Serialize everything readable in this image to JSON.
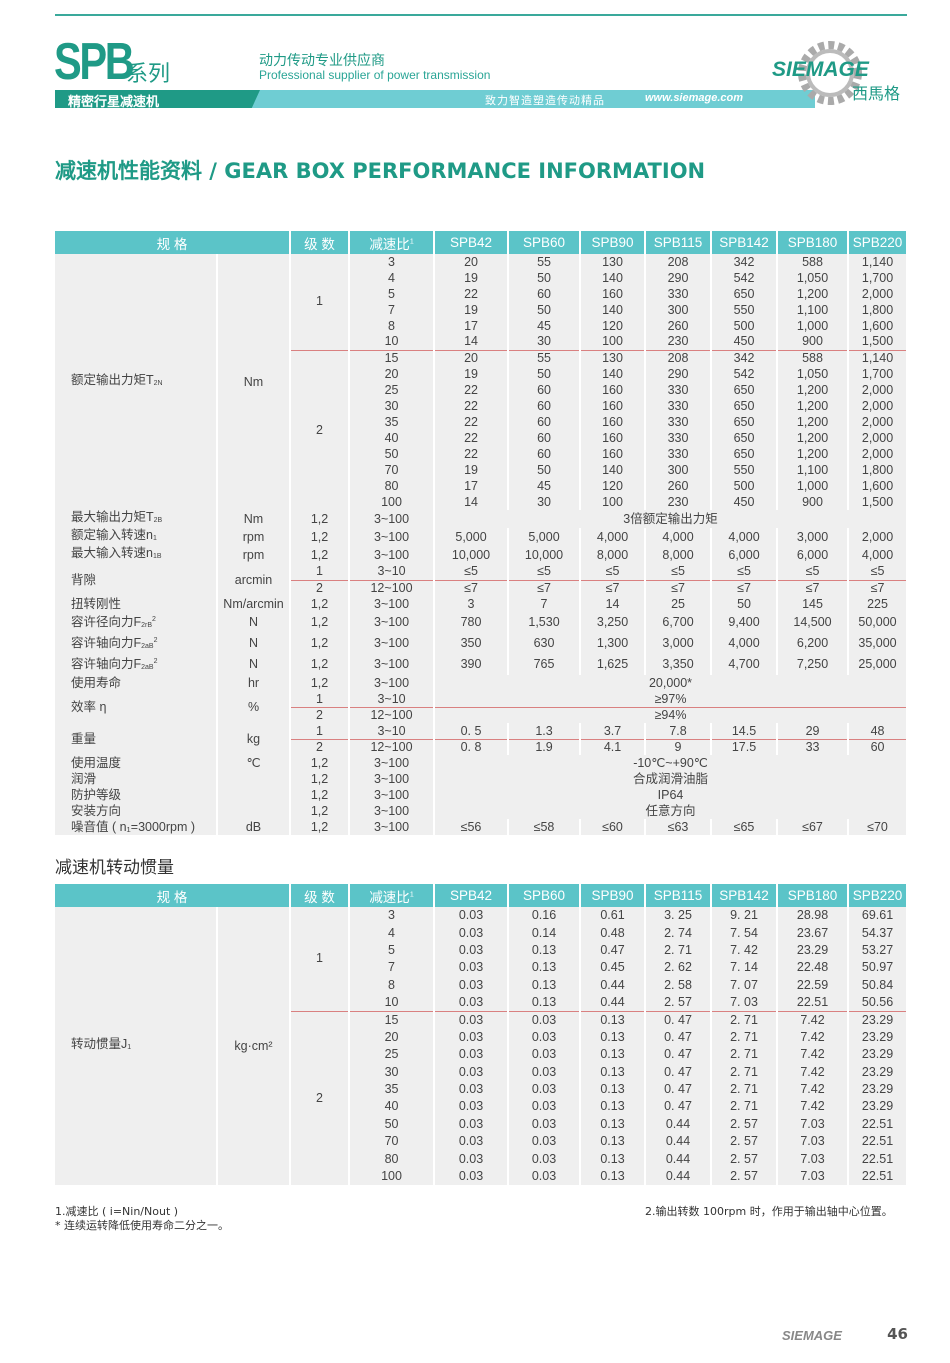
{
  "header": {
    "brand": "SPB",
    "series": "系列",
    "tagline_cn": "动力传动专业供应商",
    "tagline_en": "Professional supplier of power transmission",
    "product": "精密行星减速机",
    "slogan": "致力智造塑造传动精品",
    "url": "www.siemage.com",
    "logo_text": "SIEMAGE",
    "logo_cn": "西馬格",
    "accent": "#1f9a86",
    "band_color": "#6fcdd3"
  },
  "title": "减速机性能资料 / GEAR BOX PERFORMANCE INFORMATION",
  "columns": {
    "spec": "规 格",
    "stage": "级 数",
    "ratio": "减速比",
    "ratio_sup": "1",
    "models": [
      "SPB42",
      "SPB60",
      "SPB90",
      "SPB115",
      "SPB142",
      "SPB180",
      "SPB220"
    ]
  },
  "performance": [
    {
      "label": "额定输出力矩T",
      "sub": "2N",
      "unit": "Nm",
      "stages": [
        {
          "stage": "1",
          "rows": [
            {
              "ratio": "3",
              "values": [
                "20",
                "55",
                "130",
                "208",
                "342",
                "588",
                "1,140"
              ]
            },
            {
              "ratio": "4",
              "values": [
                "19",
                "50",
                "140",
                "290",
                "542",
                "1,050",
                "1,700"
              ]
            },
            {
              "ratio": "5",
              "values": [
                "22",
                "60",
                "160",
                "330",
                "650",
                "1,200",
                "2,000"
              ]
            },
            {
              "ratio": "7",
              "values": [
                "19",
                "50",
                "140",
                "300",
                "550",
                "1,100",
                "1,800"
              ]
            },
            {
              "ratio": "8",
              "values": [
                "17",
                "45",
                "120",
                "260",
                "500",
                "1,000",
                "1,600"
              ]
            },
            {
              "ratio": "10",
              "values": [
                "14",
                "30",
                "100",
                "230",
                "450",
                "900",
                "1,500"
              ]
            }
          ]
        },
        {
          "stage": "2",
          "rows": [
            {
              "ratio": "15",
              "values": [
                "20",
                "55",
                "130",
                "208",
                "342",
                "588",
                "1,140"
              ]
            },
            {
              "ratio": "20",
              "values": [
                "19",
                "50",
                "140",
                "290",
                "542",
                "1,050",
                "1,700"
              ]
            },
            {
              "ratio": "25",
              "values": [
                "22",
                "60",
                "160",
                "330",
                "650",
                "1,200",
                "2,000"
              ]
            },
            {
              "ratio": "30",
              "values": [
                "22",
                "60",
                "160",
                "330",
                "650",
                "1,200",
                "2,000"
              ]
            },
            {
              "ratio": "35",
              "values": [
                "22",
                "60",
                "160",
                "330",
                "650",
                "1,200",
                "2,000"
              ]
            },
            {
              "ratio": "40",
              "values": [
                "22",
                "60",
                "160",
                "330",
                "650",
                "1,200",
                "2,000"
              ]
            },
            {
              "ratio": "50",
              "values": [
                "22",
                "60",
                "160",
                "330",
                "650",
                "1,200",
                "2,000"
              ]
            },
            {
              "ratio": "70",
              "values": [
                "19",
                "50",
                "140",
                "300",
                "550",
                "1,100",
                "1,800"
              ]
            },
            {
              "ratio": "80",
              "values": [
                "17",
                "45",
                "120",
                "260",
                "500",
                "1,000",
                "1,600"
              ]
            },
            {
              "ratio": "100",
              "values": [
                "14",
                "30",
                "100",
                "230",
                "450",
                "900",
                "1,500"
              ]
            }
          ]
        }
      ]
    },
    {
      "label": "最大输出力矩T",
      "sub": "2B",
      "unit": "Nm",
      "stages": [
        {
          "stage": "1,2",
          "rows": [
            {
              "ratio": "3~100",
              "values": "3倍额定输出力矩"
            }
          ]
        }
      ]
    },
    {
      "label": "额定输入转速n",
      "sub": "1",
      "unit": "rpm",
      "stages": [
        {
          "stage": "1,2",
          "rows": [
            {
              "ratio": "3~100",
              "values": [
                "5,000",
                "5,000",
                "4,000",
                "4,000",
                "4,000",
                "3,000",
                "2,000"
              ]
            }
          ]
        }
      ]
    },
    {
      "label": "最大输入转速n",
      "sub": "1B",
      "unit": "rpm",
      "stages": [
        {
          "stage": "1,2",
          "rows": [
            {
              "ratio": "3~100",
              "values": [
                "10,000",
                "10,000",
                "8,000",
                "8,000",
                "6,000",
                "6,000",
                "4,000"
              ]
            }
          ]
        }
      ]
    },
    {
      "label": "背隙",
      "sub": "",
      "unit": "arcmin",
      "stages": [
        {
          "stage": "1",
          "rows": [
            {
              "ratio": "3~10",
              "values": [
                "≤5",
                "≤5",
                "≤5",
                "≤5",
                "≤5",
                "≤5",
                "≤5"
              ]
            }
          ]
        },
        {
          "stage": "2",
          "rows": [
            {
              "ratio": "12~100",
              "values": [
                "≤7",
                "≤7",
                "≤7",
                "≤7",
                "≤7",
                "≤7",
                "≤7"
              ]
            }
          ]
        }
      ]
    },
    {
      "label": "扭转刚性",
      "sub": "",
      "unit": "Nm/arcmin",
      "stages": [
        {
          "stage": "1,2",
          "rows": [
            {
              "ratio": "3~100",
              "values": [
                "3",
                "7",
                "14",
                "25",
                "50",
                "145",
                "225"
              ]
            }
          ]
        }
      ]
    },
    {
      "label": "容许径向力F",
      "sub": "2rB",
      "sup": "2",
      "unit": "N",
      "stages": [
        {
          "stage": "1,2",
          "rows": [
            {
              "ratio": "3~100",
              "values": [
                "780",
                "1,530",
                "3,250",
                "6,700",
                "9,400",
                "14,500",
                "50,000"
              ]
            }
          ]
        }
      ]
    },
    {
      "label": "容许轴向力F",
      "sub": "2aB",
      "sup": "2",
      "unit": "N",
      "stages": [
        {
          "stage": "1,2",
          "rows": [
            {
              "ratio": "3~100",
              "values": [
                "350",
                "630",
                "1,300",
                "3,000",
                "4,000",
                "6,200",
                "35,000"
              ]
            }
          ]
        }
      ]
    },
    {
      "label": "容许轴向力F",
      "sub": "2aB",
      "sup": "2",
      "unit": "N",
      "stages": [
        {
          "stage": "1,2",
          "rows": [
            {
              "ratio": "3~100",
              "values": [
                "390",
                "765",
                "1,625",
                "3,350",
                "4,700",
                "7,250",
                "25,000"
              ]
            }
          ]
        }
      ]
    },
    {
      "label": "使用寿命",
      "sub": "",
      "unit": "hr",
      "stages": [
        {
          "stage": "1,2",
          "rows": [
            {
              "ratio": "3~100",
              "values": "20,000*"
            }
          ]
        }
      ]
    },
    {
      "label": "效率 η",
      "sub": "",
      "unit": "%",
      "stages": [
        {
          "stage": "1",
          "rows": [
            {
              "ratio": "3~10",
              "values": "≥97%"
            }
          ]
        },
        {
          "stage": "2",
          "rows": [
            {
              "ratio": "12~100",
              "values": "≥94%"
            }
          ]
        }
      ]
    },
    {
      "label": "重量",
      "sub": "",
      "unit": "kg",
      "stages": [
        {
          "stage": "1",
          "rows": [
            {
              "ratio": "3~10",
              "values": [
                "0. 5",
                "1.3",
                "3.7",
                "7.8",
                "14.5",
                "29",
                "48"
              ]
            }
          ]
        },
        {
          "stage": "2",
          "rows": [
            {
              "ratio": "12~100",
              "values": [
                "0. 8",
                "1.9",
                "4.1",
                "9",
                "17.5",
                "33",
                "60"
              ]
            }
          ]
        }
      ]
    },
    {
      "label": "使用温度",
      "sub": "",
      "unit": "℃",
      "stages": [
        {
          "stage": "1,2",
          "rows": [
            {
              "ratio": "3~100",
              "values": "-10℃~+90℃"
            }
          ]
        }
      ]
    },
    {
      "label": "润滑",
      "sub": "",
      "unit": "",
      "stages": [
        {
          "stage": "1,2",
          "rows": [
            {
              "ratio": "3~100",
              "values": "合成润滑油脂"
            }
          ]
        }
      ]
    },
    {
      "label": "防护等级",
      "sub": "",
      "unit": "",
      "stages": [
        {
          "stage": "1,2",
          "rows": [
            {
              "ratio": "3~100",
              "values": "IP64"
            }
          ]
        }
      ]
    },
    {
      "label": "安装方向",
      "sub": "",
      "unit": "",
      "stages": [
        {
          "stage": "1,2",
          "rows": [
            {
              "ratio": "3~100",
              "values": "任意方向"
            }
          ]
        }
      ]
    },
    {
      "label": "噪音值 ( n₁=3000rpm )",
      "sub": "",
      "unit": "dB",
      "stages": [
        {
          "stage": "1,2",
          "rows": [
            {
              "ratio": "3~100",
              "values": [
                "≤56",
                "≤58",
                "≤60",
                "≤63",
                "≤65",
                "≤67",
                "≤70"
              ]
            }
          ]
        }
      ]
    }
  ],
  "inertia_title": "减速机转动惯量",
  "inertia": [
    {
      "label": "转动惯量J",
      "sub": "1",
      "unit": "kg·cm²",
      "stages": [
        {
          "stage": "1",
          "rows": [
            {
              "ratio": "3",
              "values": [
                "0.03",
                "0.16",
                "0.61",
                "3. 25",
                "9. 21",
                "28.98",
                "69.61"
              ]
            },
            {
              "ratio": "4",
              "values": [
                "0.03",
                "0.14",
                "0.48",
                "2. 74",
                "7. 54",
                "23.67",
                "54.37"
              ]
            },
            {
              "ratio": "5",
              "values": [
                "0.03",
                "0.13",
                "0.47",
                "2. 71",
                "7. 42",
                "23.29",
                "53.27"
              ]
            },
            {
              "ratio": "7",
              "values": [
                "0.03",
                "0.13",
                "0.45",
                "2. 62",
                "7. 14",
                "22.48",
                "50.97"
              ]
            },
            {
              "ratio": "8",
              "values": [
                "0.03",
                "0.13",
                "0.44",
                "2. 58",
                "7. 07",
                "22.59",
                "50.84"
              ]
            },
            {
              "ratio": "10",
              "values": [
                "0.03",
                "0.13",
                "0.44",
                "2. 57",
                "7. 03",
                "22.51",
                "50.56"
              ]
            }
          ]
        },
        {
          "stage": "2",
          "rows": [
            {
              "ratio": "15",
              "values": [
                "0.03",
                "0.03",
                "0.13",
                "0. 47",
                "2. 71",
                "7.42",
                "23.29"
              ]
            },
            {
              "ratio": "20",
              "values": [
                "0.03",
                "0.03",
                "0.13",
                "0. 47",
                "2. 71",
                "7.42",
                "23.29"
              ]
            },
            {
              "ratio": "25",
              "values": [
                "0.03",
                "0.03",
                "0.13",
                "0. 47",
                "2. 71",
                "7.42",
                "23.29"
              ]
            },
            {
              "ratio": "30",
              "values": [
                "0.03",
                "0.03",
                "0.13",
                "0. 47",
                "2. 71",
                "7.42",
                "23.29"
              ]
            },
            {
              "ratio": "35",
              "values": [
                "0.03",
                "0.03",
                "0.13",
                "0. 47",
                "2. 71",
                "7.42",
                "23.29"
              ]
            },
            {
              "ratio": "40",
              "values": [
                "0.03",
                "0.03",
                "0.13",
                "0. 47",
                "2. 71",
                "7.42",
                "23.29"
              ]
            },
            {
              "ratio": "50",
              "values": [
                "0.03",
                "0.03",
                "0.13",
                "0.44",
                "2. 57",
                "7.03",
                "22.51"
              ]
            },
            {
              "ratio": "70",
              "values": [
                "0.03",
                "0.03",
                "0.13",
                "0.44",
                "2. 57",
                "7.03",
                "22.51"
              ]
            },
            {
              "ratio": "80",
              "values": [
                "0.03",
                "0.03",
                "0.13",
                "0.44",
                "2. 57",
                "7.03",
                "22.51"
              ]
            },
            {
              "ratio": "100",
              "values": [
                "0.03",
                "0.03",
                "0.13",
                "0.44",
                "2. 57",
                "7.03",
                "22.51"
              ]
            }
          ]
        }
      ]
    }
  ],
  "notes": {
    "note1": "1.减速比 ( i=Nin/Nout )",
    "note_star": "* 连续运转降低使用寿命二分之一。",
    "note2": "2.输出转数 100rpm 时，作用于输出轴中心位置。"
  },
  "footer": {
    "logo": "SIEMAGE",
    "page": "46"
  }
}
